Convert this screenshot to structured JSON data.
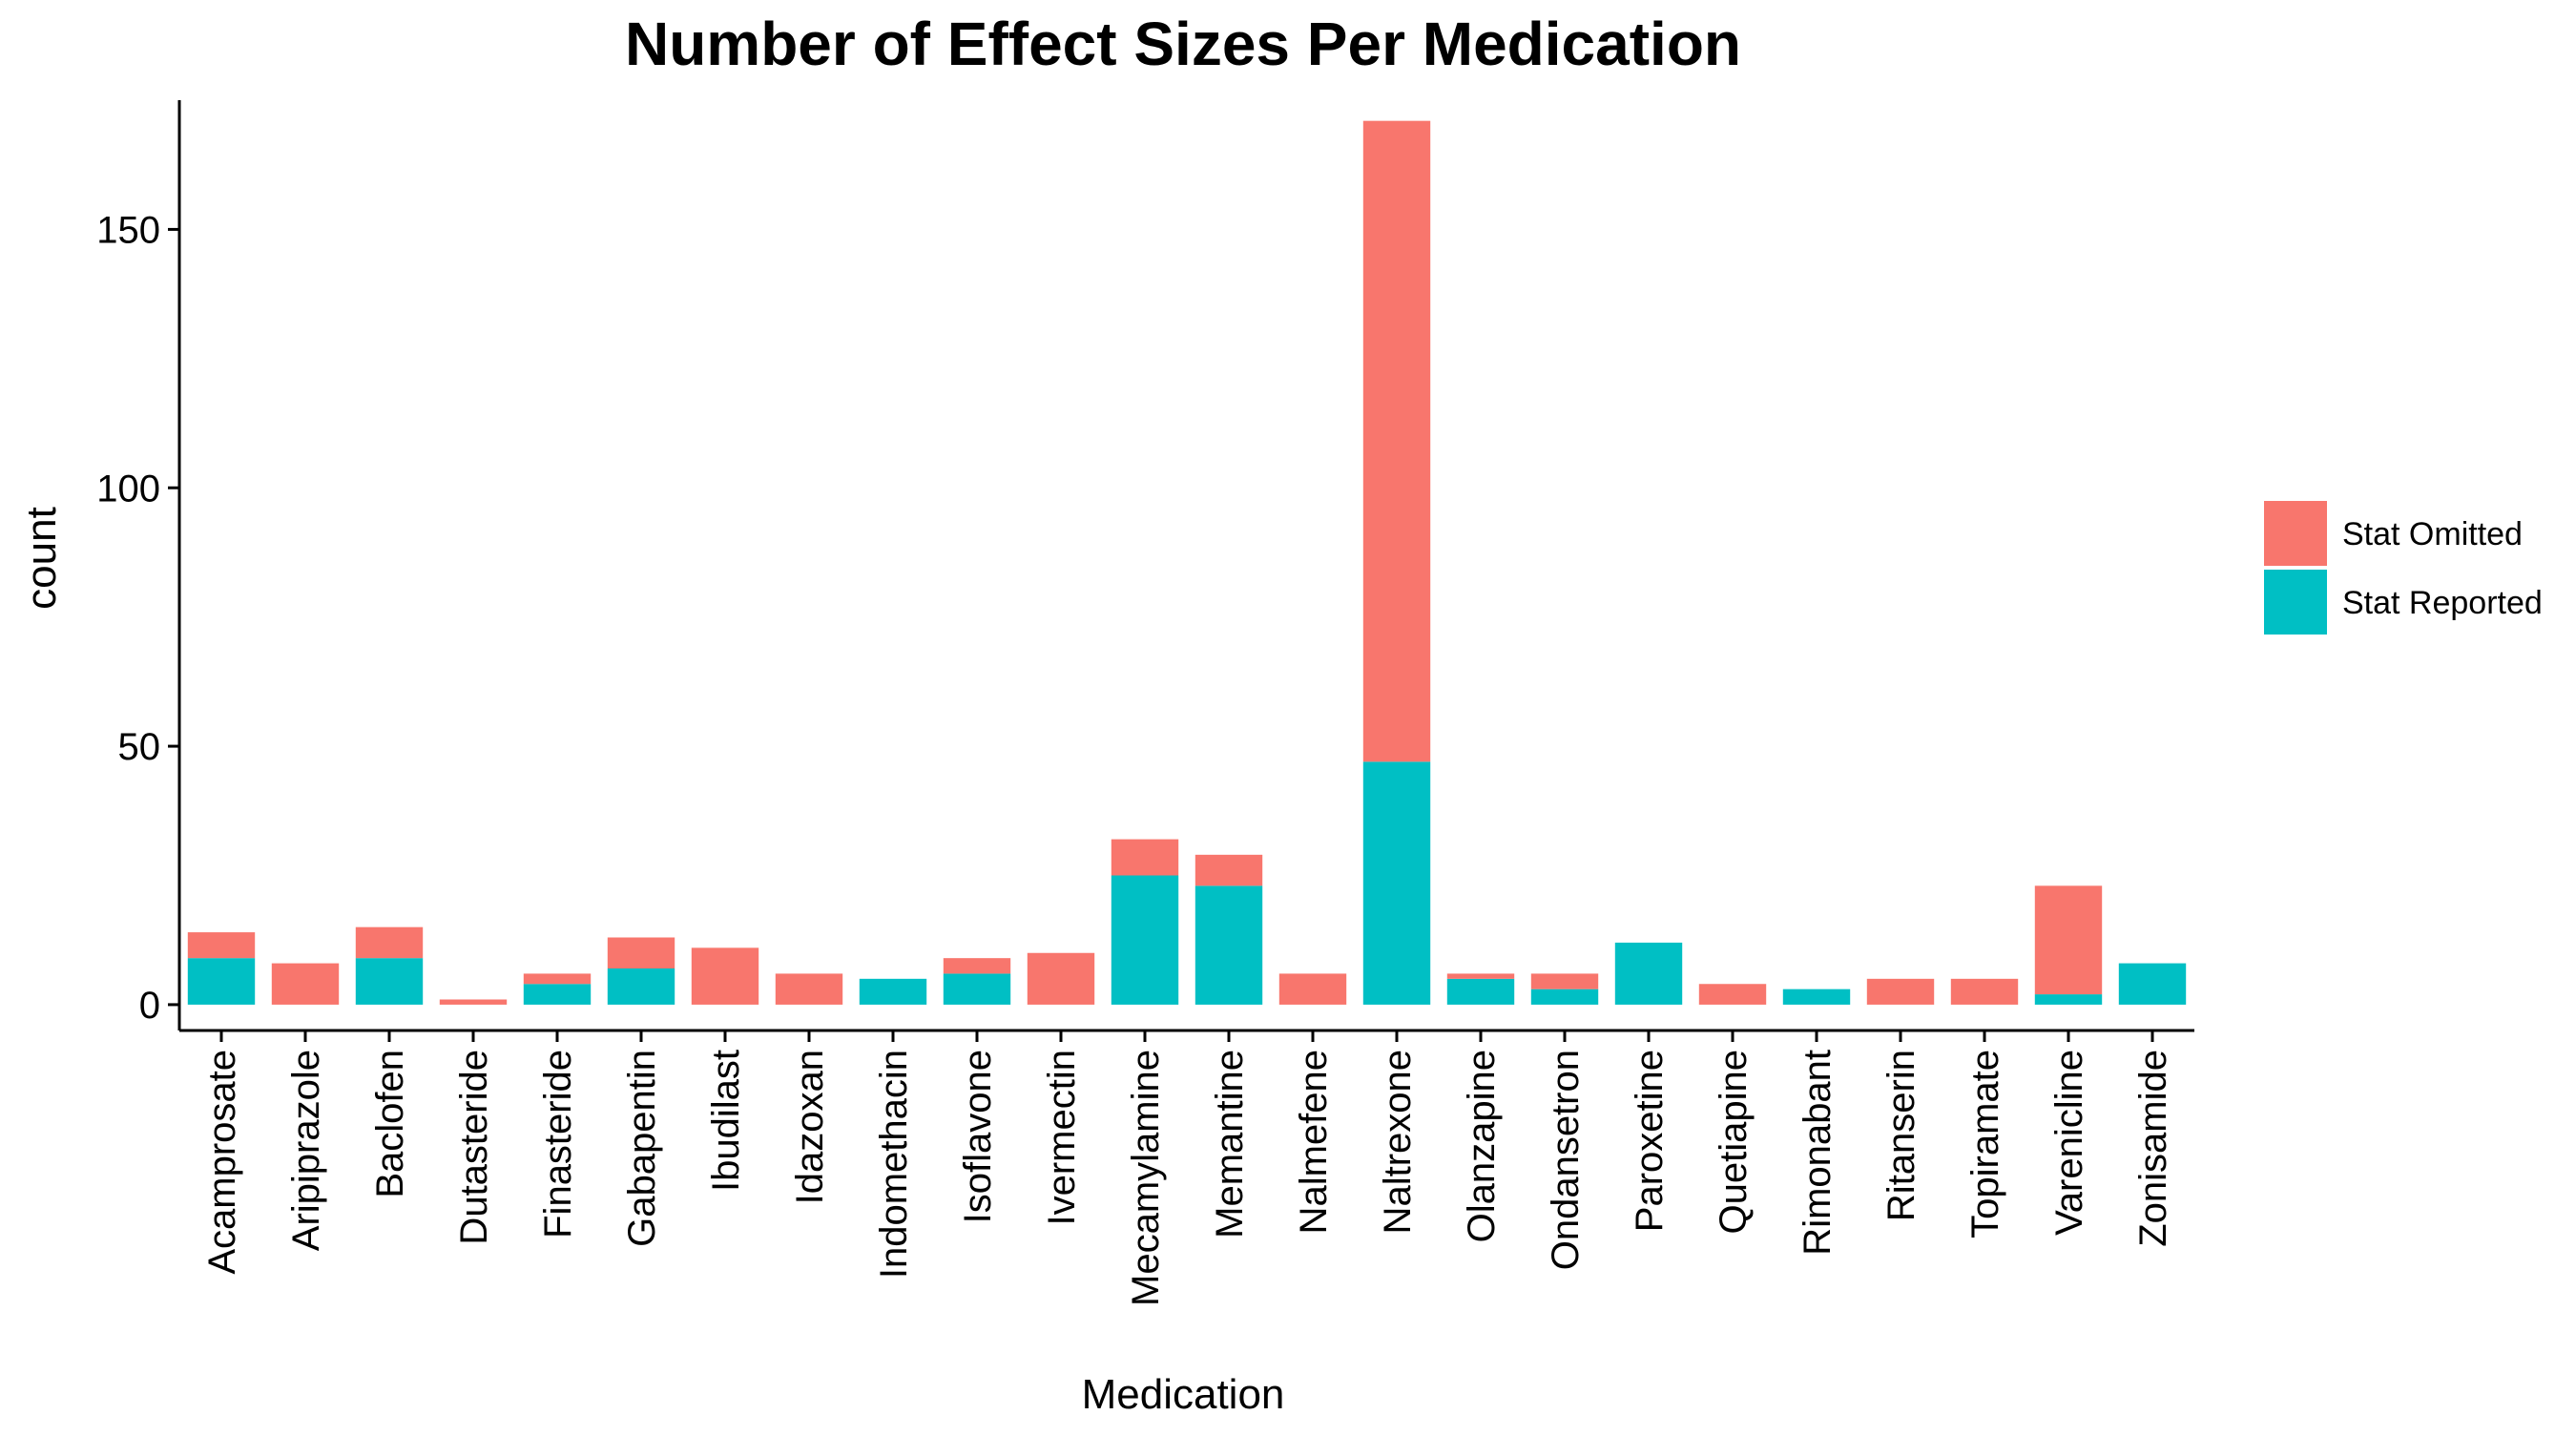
{
  "chart_data": {
    "type": "bar",
    "stacked": true,
    "title": "Number of Effect Sizes Per Medication",
    "xlabel": "Medication",
    "ylabel": "count",
    "ylim": [
      -5,
      175
    ],
    "yticks": [
      0,
      50,
      100,
      150
    ],
    "grid": false,
    "legend_position": "right",
    "categories": [
      "Acamprosate",
      "Aripiprazole",
      "Baclofen",
      "Dutasteride",
      "Finasteride",
      "Gabapentin",
      "Ibudilast",
      "Idazoxan",
      "Indomethacin",
      "Isoflavone",
      "Ivermectin",
      "Mecamylamine",
      "Memantine",
      "Nalmefene",
      "Naltrexone",
      "Olanzapine",
      "Ondansetron",
      "Paroxetine",
      "Quetiapine",
      "Rimonabant",
      "Ritanserin",
      "Topiramate",
      "Varenicline",
      "Zonisamide"
    ],
    "series": [
      {
        "name": "Stat Reported",
        "color": "#00BFC4",
        "values": [
          9,
          0,
          9,
          0,
          4,
          7,
          0,
          0,
          5,
          6,
          0,
          25,
          23,
          0,
          47,
          5,
          3,
          12,
          0,
          3,
          0,
          0,
          2,
          8
        ]
      },
      {
        "name": "Stat Omitted",
        "color": "#F8766D",
        "values": [
          5,
          8,
          6,
          1,
          2,
          6,
          11,
          6,
          0,
          3,
          10,
          7,
          6,
          6,
          124,
          1,
          3,
          0,
          4,
          0,
          5,
          5,
          21,
          0
        ]
      }
    ],
    "legend": [
      {
        "label": "Stat Omitted",
        "color": "#F8766D"
      },
      {
        "label": "Stat Reported",
        "color": "#00BFC4"
      }
    ]
  }
}
